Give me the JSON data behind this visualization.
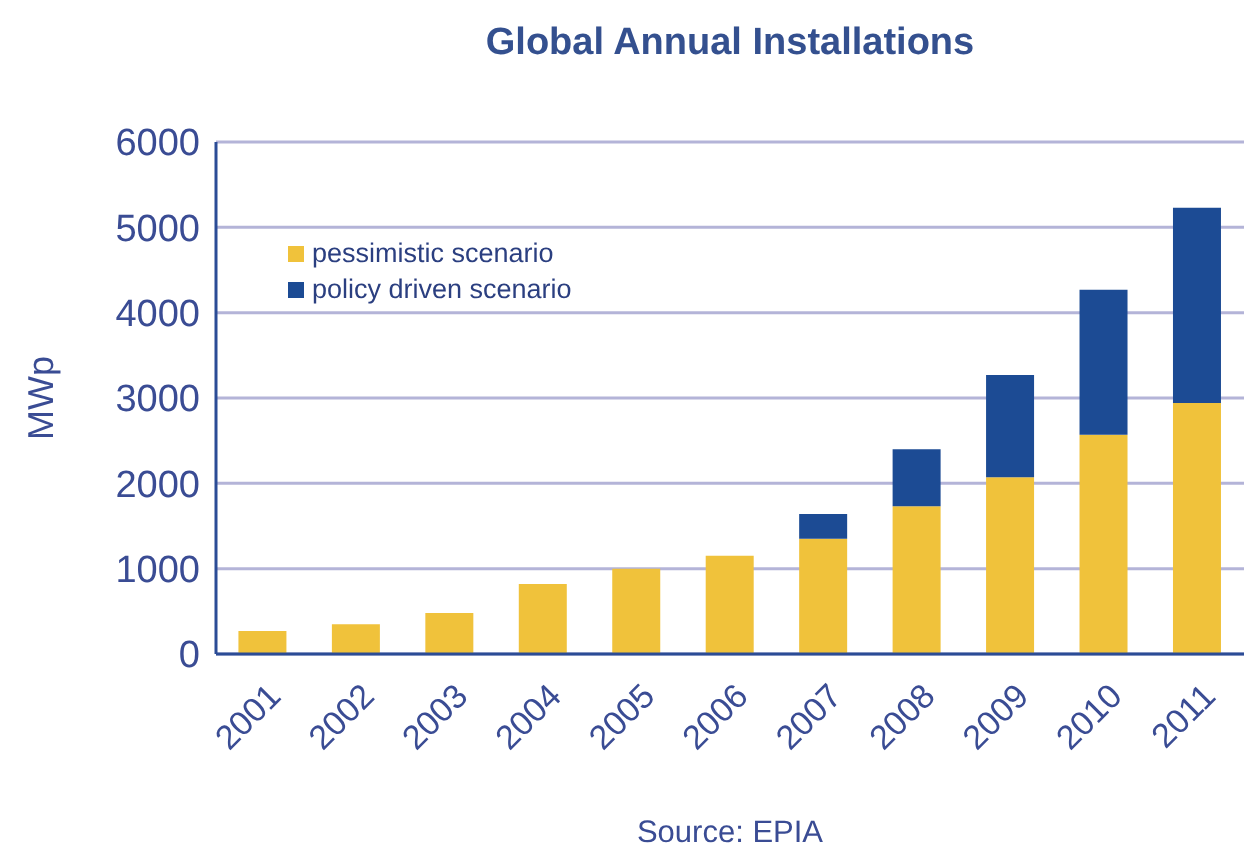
{
  "chart_data": {
    "type": "bar",
    "title": "Global Annual Installations",
    "ylabel": "MWp",
    "categories": [
      "2001",
      "2002",
      "2003",
      "2004",
      "2005",
      "2006",
      "2007",
      "2008",
      "2009",
      "2010",
      "2011"
    ],
    "stacked": true,
    "series": [
      {
        "name": "pessimistic scenario",
        "color": "#f0c23b",
        "values": [
          270,
          350,
          480,
          820,
          1000,
          1150,
          1350,
          1730,
          2070,
          2570,
          2940
        ]
      },
      {
        "name": "policy driven scenario",
        "color": "#1c4b94",
        "values": [
          null,
          null,
          null,
          null,
          null,
          null,
          290,
          670,
          1200,
          1700,
          2290
        ]
      }
    ],
    "ylim": [
      0,
      6000
    ],
    "yticks": [
      0,
      1000,
      2000,
      3000,
      4000,
      5000,
      6000
    ],
    "grid": "y",
    "legend": "top left",
    "annotations": [
      "Source: EPIA"
    ]
  }
}
